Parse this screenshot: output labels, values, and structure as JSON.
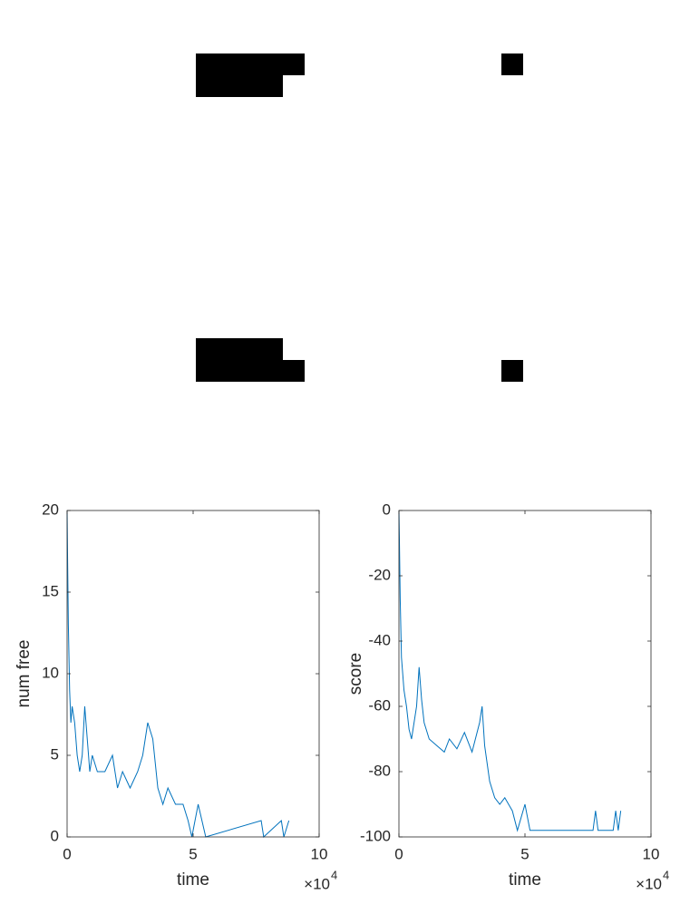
{
  "chart_data": [
    {
      "type": "line",
      "xlabel": "time",
      "ylabel": "num free",
      "x_scale_label": {
        "base": "×10",
        "exponent": "4"
      },
      "xlim": [
        0,
        10
      ],
      "ylim": [
        0,
        20
      ],
      "xticks": [
        0,
        5,
        10
      ],
      "yticks": [
        0,
        5,
        10,
        15,
        20
      ],
      "x": [
        0,
        0.02,
        0.05,
        0.1,
        0.15,
        0.2,
        0.3,
        0.4,
        0.5,
        0.6,
        0.7,
        0.8,
        0.9,
        1.0,
        1.2,
        1.5,
        1.8,
        2.0,
        2.2,
        2.5,
        2.8,
        3.0,
        3.2,
        3.4,
        3.6,
        3.8,
        4.0,
        4.3,
        4.6,
        4.8,
        4.95,
        5.2,
        5.5,
        7.7,
        7.8,
        8.5,
        8.6,
        8.8
      ],
      "series": [
        {
          "color": "#0072bd",
          "values": [
            20,
            17,
            13,
            9,
            7,
            8,
            7,
            5,
            4,
            5,
            8,
            6,
            4,
            5,
            4,
            4,
            5,
            3,
            4,
            3,
            4,
            5,
            7,
            6,
            3,
            2,
            3,
            2,
            2,
            1,
            0,
            2,
            0,
            1,
            0,
            1,
            0,
            1
          ]
        }
      ]
    },
    {
      "type": "line",
      "xlabel": "time",
      "ylabel": "score",
      "x_scale_label": {
        "base": "×10",
        "exponent": "4"
      },
      "xlim": [
        0,
        10
      ],
      "ylim": [
        -100,
        0
      ],
      "xticks": [
        0,
        5,
        10
      ],
      "yticks": [
        -100,
        -80,
        -60,
        -40,
        -20,
        0
      ],
      "x": [
        0,
        0.02,
        0.05,
        0.1,
        0.2,
        0.3,
        0.4,
        0.5,
        0.7,
        0.8,
        0.9,
        1.0,
        1.2,
        1.5,
        1.8,
        2.0,
        2.3,
        2.6,
        2.9,
        3.2,
        3.3,
        3.4,
        3.6,
        3.8,
        4.0,
        4.2,
        4.5,
        4.7,
        5.0,
        5.2,
        7.7,
        7.8,
        7.9,
        8.5,
        8.6,
        8.7,
        8.8
      ],
      "series": [
        {
          "color": "#0072bd",
          "values": [
            0,
            -10,
            -27,
            -45,
            -55,
            -60,
            -67,
            -70,
            -60,
            -48,
            -58,
            -65,
            -70,
            -72,
            -74,
            -70,
            -73,
            -68,
            -74,
            -65,
            -60,
            -72,
            -83,
            -88,
            -90,
            -88,
            -92,
            -98,
            -90,
            -98,
            -98,
            -92,
            -98,
            -98,
            -92,
            -98,
            -92
          ]
        }
      ]
    }
  ]
}
